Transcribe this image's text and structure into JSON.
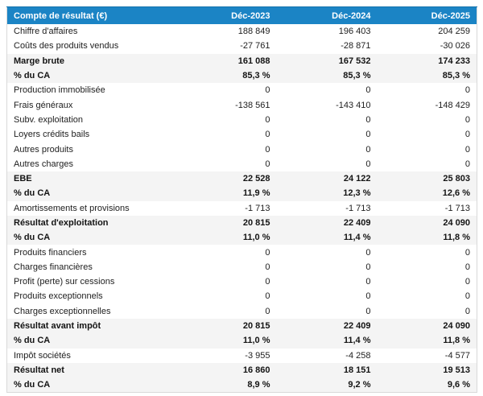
{
  "colors": {
    "header_bg": "#1b84c5",
    "header_top_border": "#1673ad",
    "header_text": "#ffffff",
    "summary_row_bg": "#f4f4f4",
    "row_bg": "#ffffff",
    "text": "#212121",
    "table_border": "#d9d9d9"
  },
  "chart_data": {
    "type": "table",
    "title": "Compte de résultat (€)",
    "columns": [
      "Compte de résultat (€)",
      "Déc-2023",
      "Déc-2024",
      "Déc-2025"
    ],
    "rows": [
      {
        "label": "Chiffre d'affaires",
        "values": [
          "188 849",
          "196 403",
          "204 259"
        ],
        "emphasis": false
      },
      {
        "label": "Coûts des produits vendus",
        "values": [
          "-27 761",
          "-28 871",
          "-30 026"
        ],
        "emphasis": false
      },
      {
        "label": "Marge brute",
        "values": [
          "161 088",
          "167 532",
          "174 233"
        ],
        "emphasis": true
      },
      {
        "label": "% du CA",
        "values": [
          "85,3 %",
          "85,3 %",
          "85,3 %"
        ],
        "emphasis": true
      },
      {
        "label": "Production immobilisée",
        "values": [
          "0",
          "0",
          "0"
        ],
        "emphasis": false
      },
      {
        "label": "Frais généraux",
        "values": [
          "-138 561",
          "-143 410",
          "-148 429"
        ],
        "emphasis": false
      },
      {
        "label": "Subv. exploitation",
        "values": [
          "0",
          "0",
          "0"
        ],
        "emphasis": false
      },
      {
        "label": "Loyers crédits bails",
        "values": [
          "0",
          "0",
          "0"
        ],
        "emphasis": false
      },
      {
        "label": "Autres produits",
        "values": [
          "0",
          "0",
          "0"
        ],
        "emphasis": false
      },
      {
        "label": "Autres charges",
        "values": [
          "0",
          "0",
          "0"
        ],
        "emphasis": false
      },
      {
        "label": "EBE",
        "values": [
          "22 528",
          "24 122",
          "25 803"
        ],
        "emphasis": true
      },
      {
        "label": "% du CA",
        "values": [
          "11,9 %",
          "12,3 %",
          "12,6 %"
        ],
        "emphasis": true
      },
      {
        "label": "Amortissements et provisions",
        "values": [
          "-1 713",
          "-1 713",
          "-1 713"
        ],
        "emphasis": false
      },
      {
        "label": "Résultat d'exploitation",
        "values": [
          "20 815",
          "22 409",
          "24 090"
        ],
        "emphasis": true
      },
      {
        "label": "% du CA",
        "values": [
          "11,0 %",
          "11,4 %",
          "11,8 %"
        ],
        "emphasis": true
      },
      {
        "label": "Produits financiers",
        "values": [
          "0",
          "0",
          "0"
        ],
        "emphasis": false
      },
      {
        "label": "Charges financières",
        "values": [
          "0",
          "0",
          "0"
        ],
        "emphasis": false
      },
      {
        "label": "Profit (perte) sur cessions",
        "values": [
          "0",
          "0",
          "0"
        ],
        "emphasis": false
      },
      {
        "label": "Produits exceptionnels",
        "values": [
          "0",
          "0",
          "0"
        ],
        "emphasis": false
      },
      {
        "label": "Charges exceptionnelles",
        "values": [
          "0",
          "0",
          "0"
        ],
        "emphasis": false
      },
      {
        "label": "Résultat avant impôt",
        "values": [
          "20 815",
          "22 409",
          "24 090"
        ],
        "emphasis": true
      },
      {
        "label": "% du CA",
        "values": [
          "11,0 %",
          "11,4 %",
          "11,8 %"
        ],
        "emphasis": true
      },
      {
        "label": "Impôt sociétés",
        "values": [
          "-3 955",
          "-4 258",
          "-4 577"
        ],
        "emphasis": false
      },
      {
        "label": "Résultat net",
        "values": [
          "16 860",
          "18 151",
          "19 513"
        ],
        "emphasis": true
      },
      {
        "label": "% du CA",
        "values": [
          "8,9 %",
          "9,2 %",
          "9,6 %"
        ],
        "emphasis": true
      }
    ]
  }
}
